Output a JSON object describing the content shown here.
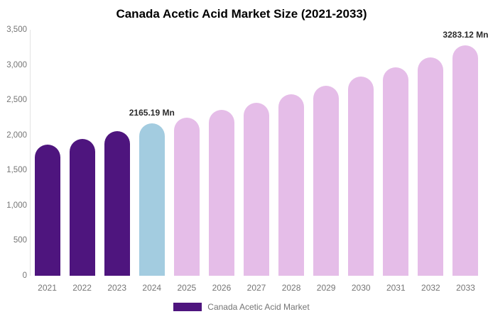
{
  "chart_data": {
    "type": "bar",
    "title": "Canada Acetic Acid Market Size (2021-2033)",
    "categories": [
      "2021",
      "2022",
      "2023",
      "2024",
      "2025",
      "2026",
      "2027",
      "2028",
      "2029",
      "2030",
      "2031",
      "2032",
      "2033"
    ],
    "values": [
      1870,
      1950,
      2057,
      2165.19,
      2250,
      2360,
      2465,
      2585,
      2700,
      2835,
      2965,
      3105,
      3283.12
    ],
    "bar_colors": [
      "#4E157E",
      "#4E157E",
      "#4E157E",
      "#A3CCE0",
      "#E5BDE8",
      "#E5BDE8",
      "#E5BDE8",
      "#E5BDE8",
      "#E5BDE8",
      "#E5BDE8",
      "#E5BDE8",
      "#E5BDE8",
      "#E5BDE8"
    ],
    "data_labels": [
      {
        "category": "2024",
        "text": "2165.19 Mn"
      },
      {
        "category": "2033",
        "text": "3283.12 Mn"
      }
    ],
    "ylim": [
      0,
      3500
    ],
    "ytick_values": [
      0,
      500,
      1000,
      1500,
      2000,
      2500,
      3000,
      3500
    ],
    "ytick_labels": [
      "0",
      "500",
      "1,000",
      "1,500",
      "2,000",
      "2,500",
      "3,000",
      "3,500"
    ],
    "grid": false,
    "xlabel": "",
    "ylabel": "",
    "legend": {
      "position": "bottom",
      "label": "Canada Acetic Acid Market",
      "swatch_color": "#4E157E"
    },
    "colors": {
      "historical": "#4E157E",
      "base_year": "#A3CCE0",
      "forecast": "#E5BDE8",
      "axis_line": "#e3e3e3",
      "axis_text": "#757575",
      "data_label_text": "#2b2b2b"
    }
  }
}
